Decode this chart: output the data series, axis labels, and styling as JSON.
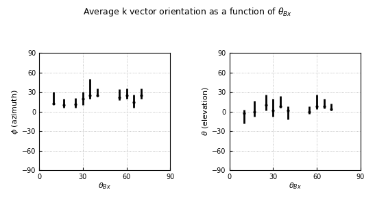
{
  "title": "Average k vector orientation as a function of $\\theta_{Bx}$",
  "left_ylabel": "$\\phi$ (azimuth)",
  "right_ylabel": "$\\theta$ (elevation)",
  "xlabel": "$\\theta_{Bx}$",
  "ylim": [
    -90,
    90
  ],
  "xlim": [
    0,
    90
  ],
  "yticks": [
    -90,
    -60,
    -30,
    0,
    30,
    60,
    90
  ],
  "xticks": [
    0,
    30,
    60,
    90
  ],
  "left_x": [
    10,
    17,
    25,
    30,
    35,
    40,
    55,
    60,
    65,
    70
  ],
  "left_mean": [
    12,
    10,
    11,
    20,
    25,
    25,
    22,
    25,
    14,
    25
  ],
  "left_bot": [
    0,
    4,
    5,
    10,
    5,
    0,
    4,
    5,
    8,
    5
  ],
  "left_top": [
    18,
    10,
    10,
    10,
    25,
    10,
    12,
    10,
    12,
    10
  ],
  "right_x": [
    10,
    17,
    25,
    30,
    35,
    40,
    55,
    60,
    65,
    70
  ],
  "right_mean": [
    -2,
    0,
    10,
    2,
    8,
    2,
    0,
    8,
    8,
    4
  ],
  "right_bot": [
    16,
    8,
    8,
    10,
    2,
    14,
    3,
    4,
    3,
    2
  ],
  "right_top": [
    5,
    16,
    16,
    18,
    16,
    6,
    8,
    18,
    12,
    8
  ],
  "background": "#ffffff",
  "line_color": "#000000",
  "grid_color": "#aaaaaa",
  "title_fontsize": 9,
  "label_fontsize": 8,
  "tick_fontsize": 7,
  "linewidth": 2.0
}
